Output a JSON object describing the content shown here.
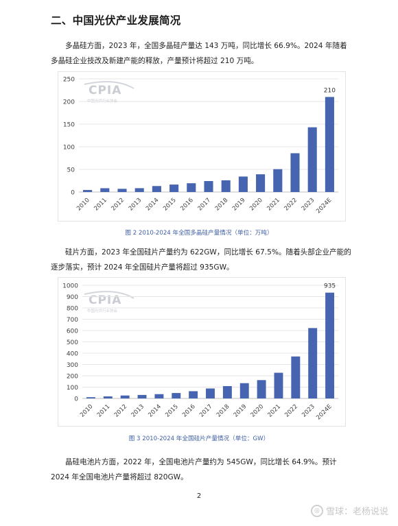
{
  "section": {
    "heading": "二、中国光伏产业发展简况"
  },
  "paragraphs": {
    "polysilicon": "多晶硅方面，2023 年，全国多晶硅产量达 143 万吨，同比增长 66.9%。2024 年随着多晶硅企业技改及新建产能的释放，产量预计将超过 210 万吨。",
    "wafer": "硅片方面，2023 年全国硅片产量约为 622GW，同比增长 67.5%。随着头部企业产能的逐步落实，预计 2024 年全国硅片产量将超过 935GW。",
    "cell": "晶硅电池片方面，2022 年，全国电池片产量约为 545GW，同比增长 64.9%。预计 2024 年全国电池片产量将超过 820GW。"
  },
  "watermark": {
    "logo": "CPIA",
    "org_cn": "中国光伏行业协会"
  },
  "chart_data": [
    {
      "type": "bar",
      "title": "",
      "categories": [
        "2010",
        "2011",
        "2012",
        "2013",
        "2014",
        "2015",
        "2016",
        "2017",
        "2018",
        "2019",
        "2020",
        "2021",
        "2022",
        "2023",
        "2024E"
      ],
      "values": [
        4.5,
        8.4,
        7.1,
        8.5,
        13.2,
        16.5,
        19.4,
        24.2,
        25.9,
        34.2,
        39.2,
        50.5,
        85.7,
        143,
        210
      ],
      "data_labels": {
        "2024E": "210"
      },
      "ylim": [
        0,
        250
      ],
      "yticks": [
        0,
        50,
        100,
        150,
        200,
        250
      ],
      "xlabel": "",
      "ylabel": "",
      "grid": true,
      "bar_color": "#4664b0",
      "caption": "图 2    2010-2024 年全国多晶硅产量情况（单位：万吨）"
    },
    {
      "type": "bar",
      "title": "",
      "categories": [
        "2010",
        "2011",
        "2012",
        "2013",
        "2014",
        "2015",
        "2016",
        "2017",
        "2018",
        "2019",
        "2020",
        "2021",
        "2022",
        "2023",
        "2024E"
      ],
      "values": [
        11,
        18,
        26,
        31,
        38,
        48,
        64,
        88,
        109,
        135,
        162,
        227,
        371,
        622,
        935
      ],
      "data_labels": {
        "2024E": "935"
      },
      "ylim": [
        0,
        1000
      ],
      "yticks": [
        0,
        100,
        200,
        300,
        400,
        500,
        600,
        700,
        800,
        900,
        1000
      ],
      "xlabel": "",
      "ylabel": "",
      "grid": true,
      "bar_color": "#4664b0",
      "caption": "图 3    2010-2024 年全国硅片产量情况（单位：GW）"
    }
  ],
  "page_number": "2",
  "footer": {
    "text": "雪球：老杨说说"
  }
}
